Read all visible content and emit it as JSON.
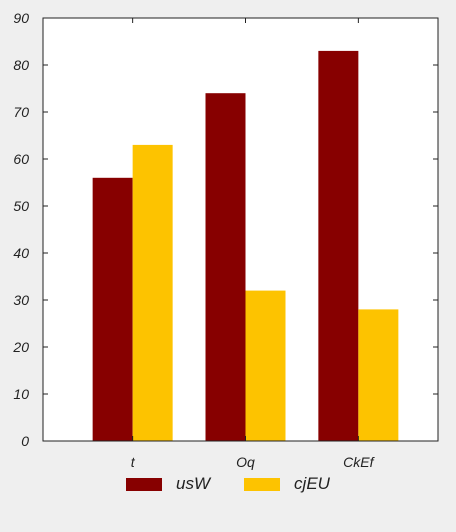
{
  "chart_data": {
    "type": "bar",
    "categories": [
      "t",
      "Oq",
      "CkEf"
    ],
    "series": [
      {
        "name": "usW",
        "values": [
          56,
          74,
          83
        ],
        "color": "#870000"
      },
      {
        "name": "cjEU",
        "values": [
          63,
          32,
          28
        ],
        "color": "#fdc300"
      }
    ],
    "ylim": [
      0,
      90
    ],
    "yticks": [
      0,
      10,
      20,
      30,
      40,
      50,
      60,
      70,
      80,
      90
    ],
    "xlabel": "",
    "ylabel": "",
    "title": "",
    "grid": false,
    "legend_position": "bottom-center",
    "background": "#ffffff"
  }
}
